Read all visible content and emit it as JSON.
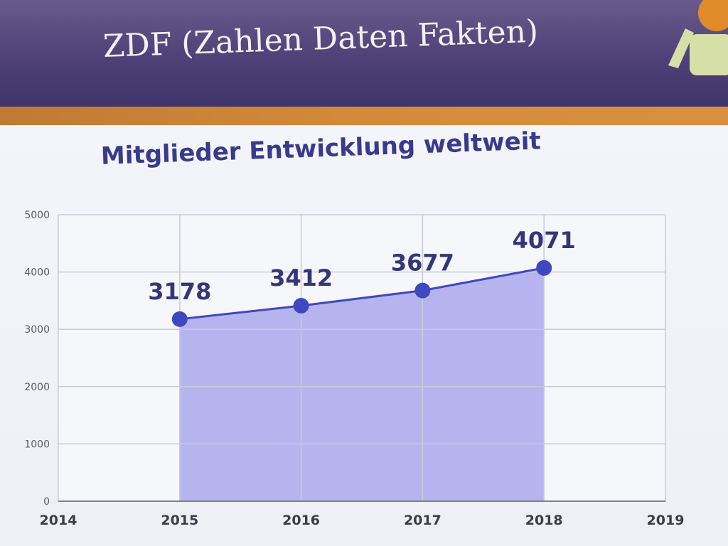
{
  "header": {
    "title": "ZDF (Zahlen Daten Fakten)"
  },
  "colors": {
    "header": "#4c3f75",
    "accent": "#d58a3a",
    "title_text": "#3a3a8c",
    "area_fill": "#a9a8ec",
    "line": "#4048c0"
  },
  "chart_data": {
    "type": "area",
    "title": "Mitglieder Entwicklung weltweit",
    "x": [
      2015,
      2016,
      2017,
      2018
    ],
    "values": [
      3178,
      3412,
      3677,
      4071
    ],
    "data_labels": [
      "3178",
      "3412",
      "3677",
      "4071"
    ],
    "xlim": [
      2014,
      2019
    ],
    "ylim": [
      0,
      5000
    ],
    "x_ticks": [
      "2014",
      "2015",
      "2016",
      "2017",
      "2018",
      "2019"
    ],
    "y_ticks": [
      "0",
      "1000",
      "2000",
      "3000",
      "4000",
      "5000"
    ],
    "xlabel": "",
    "ylabel": "",
    "grid": true,
    "legend": "none"
  }
}
